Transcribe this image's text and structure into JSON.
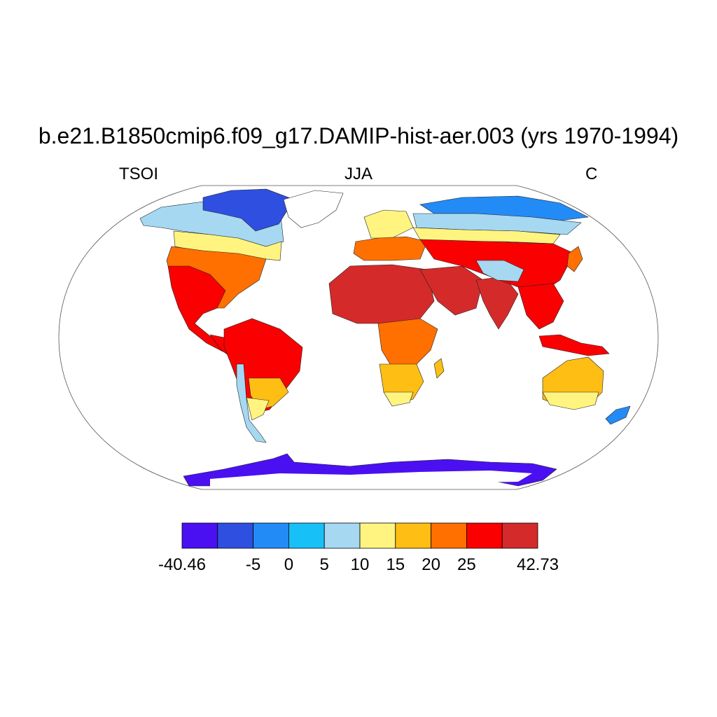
{
  "title": "b.e21.B1850cmip6.f09_g17.DAMIP-hist-aer.003 (yrs 1970-1994)",
  "left_label": "TSOI",
  "center_label": "JJA",
  "right_label": "C",
  "colorbar": {
    "colors": [
      "#4a10f2",
      "#2f4fe0",
      "#238bf5",
      "#18c0f8",
      "#a6d8f2",
      "#fff480",
      "#ffbe14",
      "#ff7000",
      "#fa0000",
      "#d52a2a"
    ],
    "tick_labels": [
      {
        "text": "-40.46",
        "boundary": 0
      },
      {
        "text": "-5",
        "boundary": 2
      },
      {
        "text": "0",
        "boundary": 3
      },
      {
        "text": "5",
        "boundary": 4
      },
      {
        "text": "10",
        "boundary": 5
      },
      {
        "text": "15",
        "boundary": 6
      },
      {
        "text": "20",
        "boundary": 7
      },
      {
        "text": "25",
        "boundary": 8
      },
      {
        "text": "42.73",
        "boundary": 10
      }
    ]
  }
}
